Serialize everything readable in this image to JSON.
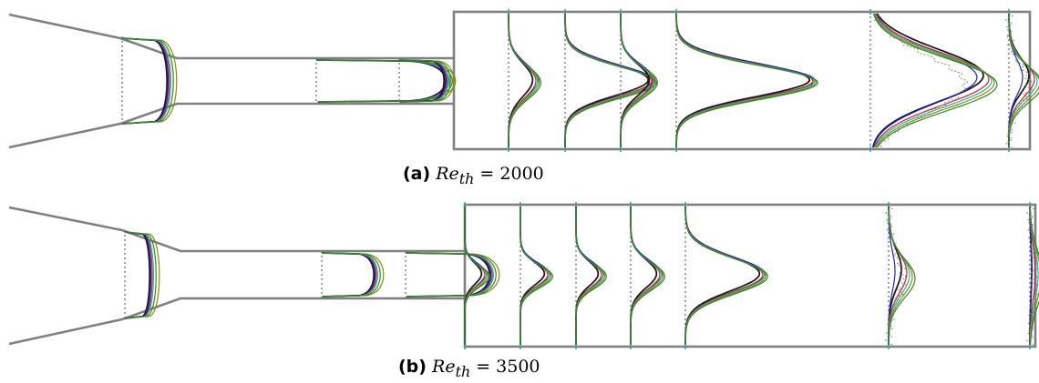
{
  "panels": [
    {
      "id": "a",
      "label": "(a)",
      "symbol": "Re",
      "subscript": "th",
      "equals": "=",
      "value": "2000",
      "profile_count": 10
    },
    {
      "id": "b",
      "label": "(b)",
      "symbol": "Re",
      "subscript": "th",
      "equals": "=",
      "value": "3500",
      "profile_count": 11
    }
  ],
  "colors": {
    "wall": "#808080",
    "reference_line": "#7a7a7a",
    "marker": "#3aa3a3",
    "curves": [
      "#1b1b1b",
      "#1f1fd6",
      "#d62020",
      "#20b4b4",
      "#8a8a00",
      "#2a8a2a"
    ],
    "experiment": "#7a7a7a"
  }
}
